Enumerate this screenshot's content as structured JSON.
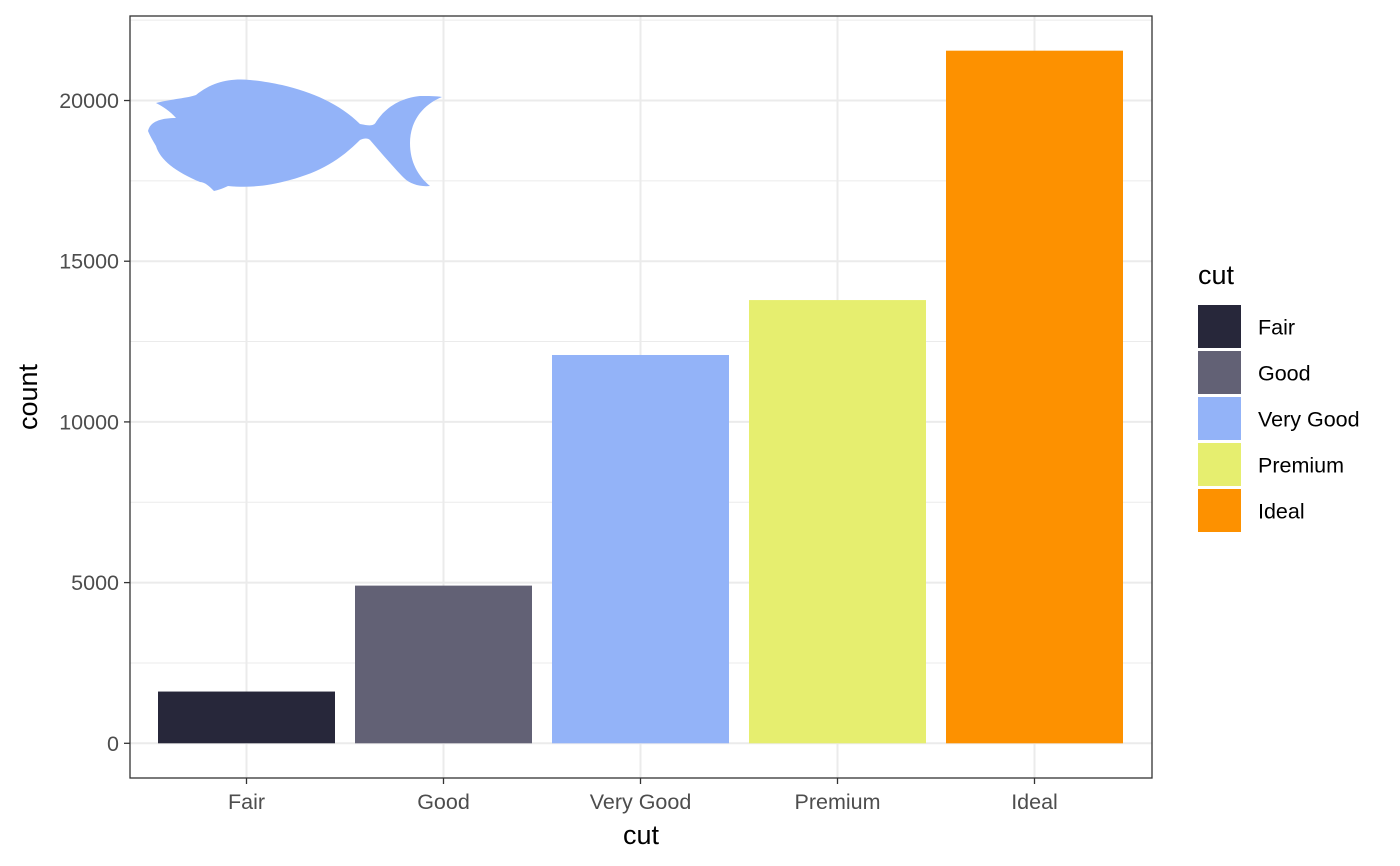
{
  "chart_data": {
    "type": "bar",
    "categories": [
      "Fair",
      "Good",
      "Very Good",
      "Premium",
      "Ideal"
    ],
    "values": [
      1610,
      4906,
      12082,
      13791,
      21551
    ],
    "colors": [
      "#27273a",
      "#626175",
      "#93b3f8",
      "#e6ee6f",
      "#fd9100"
    ],
    "xlabel": "cut",
    "ylabel": "count",
    "ylim": [
      -1080,
      22630
    ],
    "yticks": [
      0,
      5000,
      10000,
      15000,
      20000
    ],
    "grid": true,
    "theme": "bw",
    "legend": {
      "title": "cut",
      "placement": "right",
      "entries": [
        "Fair",
        "Good",
        "Very Good",
        "Premium",
        "Ideal"
      ]
    },
    "decoration": {
      "type": "fish-silhouette",
      "icon": "fish-icon",
      "color": "#93b3f8"
    }
  }
}
